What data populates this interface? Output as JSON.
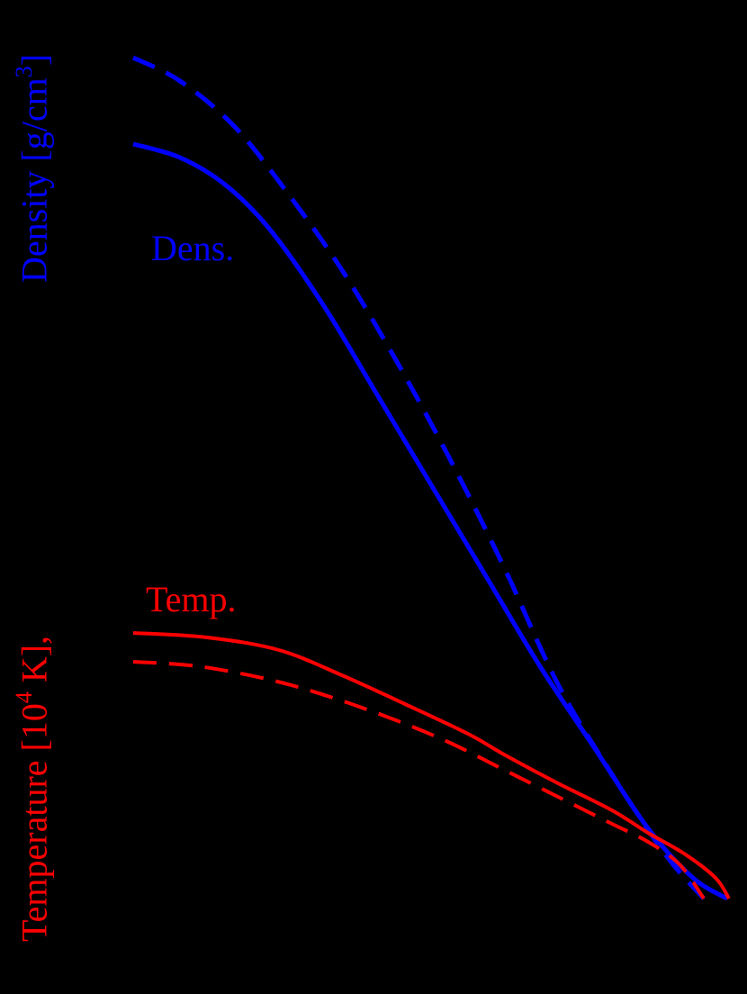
{
  "colors": {
    "background": "#000000",
    "density": "#0000ff",
    "temperature": "#ff0000",
    "axes": "#000000"
  },
  "labels": {
    "density_axis": {
      "text": "Density [g/cm",
      "sup": "3",
      "close": "]"
    },
    "temperature_axis": {
      "text": "Temperature [10",
      "sup": "4",
      "close": " K],",
      "note": "axis tick labels and frame are drawn in black on black background and are not visible"
    },
    "density_annotation": "Dens.",
    "temperature_annotation": "Temp."
  },
  "chart_data": {
    "type": "line",
    "title": "",
    "xlabel": "",
    "ylabel": "Temperature [10^4 K], Density [g/cm^3]",
    "grid": false,
    "legend": "inline annotations: 'Dens.' (blue) and 'Temp.' (red)",
    "axes_visible": false,
    "coordinate_note": "Values are in screen pixel coordinates (x right, y down) because tick labels are not visible.",
    "series": [
      {
        "name": "Density (dashed)",
        "color": "#0000ff",
        "style": "dashed",
        "width": 5,
        "points": [
          [
            148,
            64
          ],
          [
            200,
            90
          ],
          [
            260,
            140
          ],
          [
            320,
            215
          ],
          [
            380,
            300
          ],
          [
            440,
            400
          ],
          [
            500,
            510
          ],
          [
            560,
            630
          ],
          [
            620,
            760
          ],
          [
            680,
            860
          ],
          [
            740,
            950
          ],
          [
            782,
            998
          ]
        ]
      },
      {
        "name": "Density (solid)",
        "color": "#0000ff",
        "style": "solid",
        "width": 5,
        "points": [
          [
            148,
            160
          ],
          [
            200,
            175
          ],
          [
            250,
            205
          ],
          [
            300,
            255
          ],
          [
            360,
            340
          ],
          [
            420,
            440
          ],
          [
            480,
            540
          ],
          [
            540,
            640
          ],
          [
            600,
            740
          ],
          [
            660,
            830
          ],
          [
            720,
            920
          ],
          [
            770,
            975
          ],
          [
            808,
            998
          ]
        ]
      },
      {
        "name": "Temperature (solid)",
        "color": "#ff0000",
        "style": "solid",
        "width": 4,
        "points": [
          [
            148,
            703
          ],
          [
            230,
            708
          ],
          [
            310,
            722
          ],
          [
            380,
            750
          ],
          [
            450,
            782
          ],
          [
            520,
            815
          ],
          [
            560,
            838
          ],
          [
            620,
            870
          ],
          [
            680,
            900
          ],
          [
            720,
            925
          ],
          [
            760,
            948
          ],
          [
            795,
            975
          ],
          [
            810,
            998
          ]
        ]
      },
      {
        "name": "Temperature (dashed)",
        "color": "#ff0000",
        "style": "dashed",
        "width": 4,
        "points": [
          [
            148,
            735
          ],
          [
            220,
            740
          ],
          [
            300,
            755
          ],
          [
            370,
            775
          ],
          [
            440,
            800
          ],
          [
            500,
            825
          ],
          [
            560,
            855
          ],
          [
            620,
            885
          ],
          [
            680,
            915
          ],
          [
            720,
            935
          ],
          [
            755,
            960
          ],
          [
            782,
            998
          ]
        ]
      }
    ]
  }
}
